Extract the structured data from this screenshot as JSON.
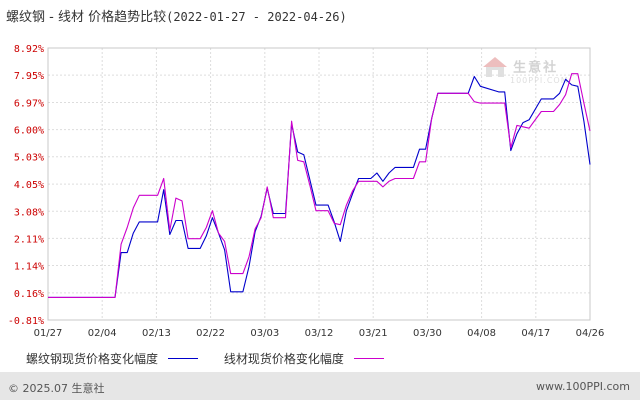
{
  "header": {
    "title": "螺纹钢 - 线材 价格趋势比较",
    "range": "(2022-01-27 - 2022-04-26)"
  },
  "watermark": {
    "brand": "生意社",
    "sub": "100PPI.COM"
  },
  "legend": {
    "items": [
      {
        "label": "螺纹钢现货价格变化幅度",
        "color": "#0000cc"
      },
      {
        "label": "线材现货价格变化幅度",
        "color": "#cc00cc"
      }
    ]
  },
  "footer": {
    "copyright": "© 2025.07 生意社",
    "url": "www.100PPI.com"
  },
  "chart_data": {
    "type": "line",
    "title": "螺纹钢 - 线材 价格趋势比较",
    "ylim": [
      -0.81,
      8.92
    ],
    "yticks": [
      "-0.81%",
      "0.16%",
      "1.14%",
      "2.11%",
      "3.08%",
      "4.05%",
      "5.03%",
      "6.00%",
      "6.97%",
      "7.95%",
      "8.92%"
    ],
    "ytick_values": [
      -0.81,
      0.16,
      1.14,
      2.11,
      3.08,
      4.05,
      5.03,
      6.0,
      6.97,
      7.95,
      8.92
    ],
    "xticks": [
      "01/27",
      "02/04",
      "02/13",
      "02/22",
      "03/03",
      "03/12",
      "03/21",
      "03/30",
      "04/08",
      "04/17",
      "04/26"
    ],
    "grid": true,
    "legend_position": "bottom",
    "series": [
      {
        "name": "螺纹钢现货价格变化幅度",
        "color": "#0000cc",
        "points": [
          [
            "2022-01-27",
            0.0
          ],
          [
            "2022-02-07",
            0.0
          ],
          [
            "2022-02-08",
            1.6
          ],
          [
            "2022-02-09",
            1.6
          ],
          [
            "2022-02-10",
            2.3
          ],
          [
            "2022-02-11",
            2.7
          ],
          [
            "2022-02-14",
            2.7
          ],
          [
            "2022-02-15",
            3.85
          ],
          [
            "2022-02-16",
            2.25
          ],
          [
            "2022-02-17",
            2.75
          ],
          [
            "2022-02-18",
            2.75
          ],
          [
            "2022-02-19",
            1.75
          ],
          [
            "2022-02-21",
            1.75
          ],
          [
            "2022-02-22",
            2.2
          ],
          [
            "2022-02-23",
            2.85
          ],
          [
            "2022-02-24",
            2.3
          ],
          [
            "2022-02-25",
            1.7
          ],
          [
            "2022-02-26",
            0.2
          ],
          [
            "2022-02-28",
            0.2
          ],
          [
            "2022-03-01",
            1.1
          ],
          [
            "2022-03-02",
            2.35
          ],
          [
            "2022-03-03",
            2.9
          ],
          [
            "2022-03-04",
            3.9
          ],
          [
            "2022-03-05",
            3.0
          ],
          [
            "2022-03-07",
            3.0
          ],
          [
            "2022-03-08",
            6.2
          ],
          [
            "2022-03-09",
            5.2
          ],
          [
            "2022-03-10",
            5.1
          ],
          [
            "2022-03-11",
            4.2
          ],
          [
            "2022-03-12",
            3.3
          ],
          [
            "2022-03-14",
            3.3
          ],
          [
            "2022-03-15",
            2.7
          ],
          [
            "2022-03-16",
            2.0
          ],
          [
            "2022-03-17",
            3.1
          ],
          [
            "2022-03-18",
            3.7
          ],
          [
            "2022-03-19",
            4.25
          ],
          [
            "2022-03-21",
            4.25
          ],
          [
            "2022-03-22",
            4.45
          ],
          [
            "2022-03-23",
            4.15
          ],
          [
            "2022-03-24",
            4.45
          ],
          [
            "2022-03-25",
            4.65
          ],
          [
            "2022-03-28",
            4.65
          ],
          [
            "2022-03-29",
            5.3
          ],
          [
            "2022-03-30",
            5.3
          ],
          [
            "2022-03-31",
            6.4
          ],
          [
            "2022-04-01",
            7.3
          ],
          [
            "2022-04-04",
            7.3
          ],
          [
            "2022-04-06",
            7.3
          ],
          [
            "2022-04-07",
            7.9
          ],
          [
            "2022-04-08",
            7.55
          ],
          [
            "2022-04-11",
            7.35
          ],
          [
            "2022-04-12",
            7.35
          ],
          [
            "2022-04-13",
            5.25
          ],
          [
            "2022-04-14",
            5.85
          ],
          [
            "2022-04-15",
            6.25
          ],
          [
            "2022-04-16",
            6.35
          ],
          [
            "2022-04-18",
            7.1
          ],
          [
            "2022-04-19",
            7.1
          ],
          [
            "2022-04-20",
            7.1
          ],
          [
            "2022-04-21",
            7.3
          ],
          [
            "2022-04-22",
            7.8
          ],
          [
            "2022-04-23",
            7.6
          ],
          [
            "2022-04-24",
            7.55
          ],
          [
            "2022-04-25",
            6.3
          ],
          [
            "2022-04-26",
            4.75
          ]
        ]
      },
      {
        "name": "线材现货价格变化幅度",
        "color": "#cc00cc",
        "points": [
          [
            "2022-01-27",
            0.0
          ],
          [
            "2022-02-07",
            0.0
          ],
          [
            "2022-02-08",
            1.9
          ],
          [
            "2022-02-09",
            2.5
          ],
          [
            "2022-02-10",
            3.2
          ],
          [
            "2022-02-11",
            3.65
          ],
          [
            "2022-02-14",
            3.65
          ],
          [
            "2022-02-15",
            4.25
          ],
          [
            "2022-02-16",
            2.4
          ],
          [
            "2022-02-17",
            3.55
          ],
          [
            "2022-02-18",
            3.45
          ],
          [
            "2022-02-19",
            2.1
          ],
          [
            "2022-02-21",
            2.1
          ],
          [
            "2022-02-22",
            2.5
          ],
          [
            "2022-02-23",
            3.1
          ],
          [
            "2022-02-24",
            2.3
          ],
          [
            "2022-02-25",
            2.0
          ],
          [
            "2022-02-26",
            0.85
          ],
          [
            "2022-02-28",
            0.85
          ],
          [
            "2022-03-01",
            1.45
          ],
          [
            "2022-03-02",
            2.45
          ],
          [
            "2022-03-03",
            2.85
          ],
          [
            "2022-03-04",
            3.95
          ],
          [
            "2022-03-05",
            2.85
          ],
          [
            "2022-03-07",
            2.85
          ],
          [
            "2022-03-08",
            6.3
          ],
          [
            "2022-03-09",
            4.9
          ],
          [
            "2022-03-10",
            4.85
          ],
          [
            "2022-03-11",
            4.0
          ],
          [
            "2022-03-12",
            3.1
          ],
          [
            "2022-03-14",
            3.1
          ],
          [
            "2022-03-15",
            2.65
          ],
          [
            "2022-03-16",
            2.6
          ],
          [
            "2022-03-17",
            3.3
          ],
          [
            "2022-03-18",
            3.8
          ],
          [
            "2022-03-19",
            4.15
          ],
          [
            "2022-03-21",
            4.15
          ],
          [
            "2022-03-22",
            4.15
          ],
          [
            "2022-03-23",
            3.95
          ],
          [
            "2022-03-24",
            4.15
          ],
          [
            "2022-03-25",
            4.25
          ],
          [
            "2022-03-28",
            4.25
          ],
          [
            "2022-03-29",
            4.85
          ],
          [
            "2022-03-30",
            4.85
          ],
          [
            "2022-03-31",
            6.4
          ],
          [
            "2022-04-01",
            7.3
          ],
          [
            "2022-04-04",
            7.3
          ],
          [
            "2022-04-06",
            7.3
          ],
          [
            "2022-04-07",
            7.0
          ],
          [
            "2022-04-08",
            6.95
          ],
          [
            "2022-04-11",
            6.95
          ],
          [
            "2022-04-12",
            6.95
          ],
          [
            "2022-04-13",
            5.35
          ],
          [
            "2022-04-14",
            6.15
          ],
          [
            "2022-04-15",
            6.1
          ],
          [
            "2022-04-16",
            6.05
          ],
          [
            "2022-04-18",
            6.65
          ],
          [
            "2022-04-19",
            6.65
          ],
          [
            "2022-04-20",
            6.65
          ],
          [
            "2022-04-21",
            6.9
          ],
          [
            "2022-04-22",
            7.25
          ],
          [
            "2022-04-23",
            8.0
          ],
          [
            "2022-04-24",
            8.0
          ],
          [
            "2022-04-25",
            6.95
          ],
          [
            "2022-04-26",
            5.95
          ]
        ]
      }
    ]
  }
}
